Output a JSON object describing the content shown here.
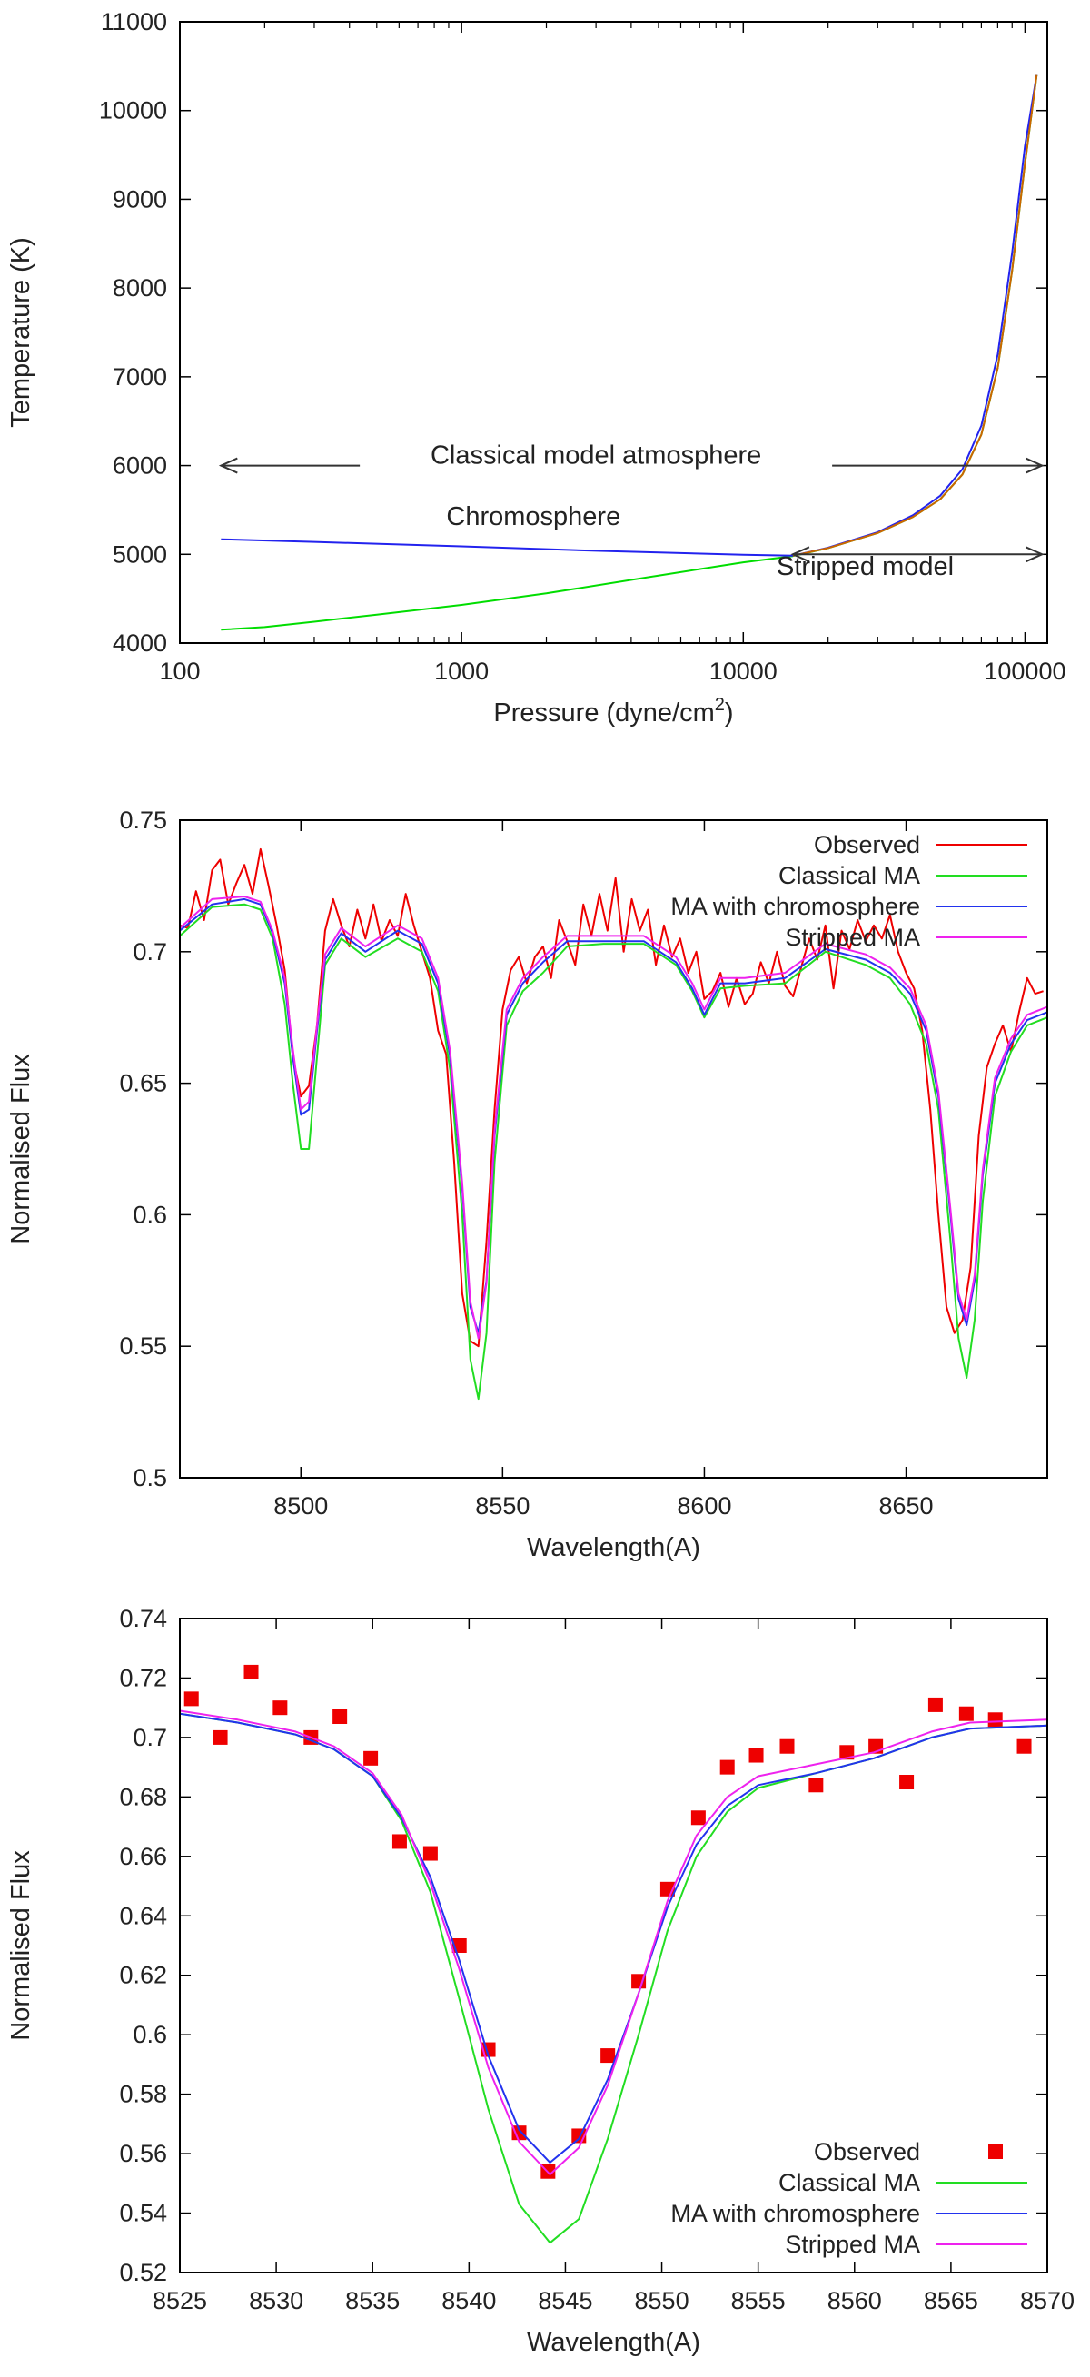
{
  "chart_data": [
    {
      "type": "line",
      "xscale": "log",
      "xlabel": "Pressure (dyne/cm",
      "xlabel_sup": "2",
      "xlabel_tail": ")",
      "ylabel": "Temperature (K)",
      "xlim": [
        100,
        120000
      ],
      "ylim": [
        4000,
        11000
      ],
      "xticks": [
        100,
        1000,
        10000,
        100000
      ],
      "xtick_labels": [
        "100",
        "1000",
        "10000",
        "100000"
      ],
      "yticks": [
        4000,
        5000,
        6000,
        7000,
        8000,
        9000,
        10000,
        11000
      ],
      "ytick_labels": [
        "4000",
        "5000",
        "6000",
        "7000",
        "8000",
        "9000",
        "10000",
        "11000"
      ],
      "series": [
        {
          "name": "Classical model atmosphere",
          "color": "#00dd00",
          "x": [
            140,
            200,
            300,
            500,
            1000,
            2000,
            5000,
            10000,
            15000,
            20000,
            30000,
            40000,
            50000,
            60000,
            70000,
            80000,
            90000,
            100000,
            110000
          ],
          "y": [
            4150,
            4180,
            4240,
            4320,
            4430,
            4560,
            4760,
            4910,
            4980,
            5070,
            5240,
            5420,
            5620,
            5900,
            6350,
            7100,
            8200,
            9400,
            10400
          ]
        },
        {
          "name": "Chromosphere",
          "color": "#2222ee",
          "x": [
            140,
            300,
            1000,
            3000,
            10000,
            15000,
            20000,
            30000,
            40000,
            50000,
            60000,
            70000,
            80000,
            90000,
            100000,
            110000
          ],
          "y": [
            5170,
            5140,
            5090,
            5040,
            4995,
            4985,
            5075,
            5250,
            5440,
            5660,
            5960,
            6450,
            7250,
            8400,
            9600,
            10400
          ]
        },
        {
          "name": "Stripped model",
          "color": "#cc6600",
          "x": [
            15000,
            20000,
            30000,
            40000,
            50000,
            60000,
            70000,
            80000,
            90000,
            100000,
            110000
          ],
          "y": [
            4985,
            5070,
            5240,
            5420,
            5620,
            5900,
            6350,
            7100,
            8200,
            9400,
            10400
          ]
        }
      ],
      "annotations": [
        {
          "text": "Classical model atmosphere",
          "x": 3000,
          "y": 6000
        },
        {
          "text": "Chromosphere",
          "x": 1800,
          "y": 5270
        },
        {
          "text": "Stripped model",
          "x": 40000,
          "y": 4870
        }
      ],
      "arrows": [
        {
          "from": [
            140,
            6000
          ],
          "to": [
            115000,
            6000
          ]
        },
        {
          "from": [
            15000,
            5000
          ],
          "to": [
            115000,
            5000
          ]
        }
      ]
    },
    {
      "type": "line",
      "xlabel": "Wavelength(A)",
      "ylabel": "Normalised Flux",
      "xlim": [
        8470,
        8685
      ],
      "ylim": [
        0.5,
        0.75
      ],
      "xticks": [
        8500,
        8550,
        8600,
        8650
      ],
      "xtick_labels": [
        "8500",
        "8550",
        "8600",
        "8650"
      ],
      "yticks": [
        0.5,
        0.55,
        0.6,
        0.65,
        0.7,
        0.75
      ],
      "ytick_labels": [
        "0.5",
        "0.55",
        "0.6",
        "0.65",
        "0.7",
        "0.75"
      ],
      "legend": "top-right",
      "series": [
        {
          "name": "Observed",
          "color": "#ee0000",
          "x": [
            8470,
            8472,
            8474,
            8476,
            8478,
            8480,
            8482,
            8484,
            8486,
            8488,
            8490,
            8492,
            8494,
            8496,
            8498,
            8500,
            8502,
            8504,
            8506,
            8508,
            8510,
            8512,
            8514,
            8516,
            8518,
            8520,
            8522,
            8524,
            8526,
            8528,
            8530,
            8532,
            8534,
            8536,
            8538,
            8540,
            8542,
            8544,
            8546,
            8548,
            8550,
            8552,
            8554,
            8556,
            8558,
            8560,
            8562,
            8564,
            8566,
            8568,
            8570,
            8572,
            8574,
            8576,
            8578,
            8580,
            8582,
            8584,
            8586,
            8588,
            8590,
            8592,
            8594,
            8596,
            8598,
            8600,
            8602,
            8604,
            8606,
            8608,
            8610,
            8612,
            8614,
            8616,
            8618,
            8620,
            8622,
            8624,
            8626,
            8628,
            8630,
            8632,
            8634,
            8636,
            8638,
            8640,
            8642,
            8644,
            8646,
            8648,
            8650,
            8652,
            8654,
            8656,
            8658,
            8660,
            8662,
            8664,
            8666,
            8668,
            8670,
            8672,
            8674,
            8676,
            8678,
            8680,
            8682,
            8684
          ],
          "y": [
            0.71,
            0.709,
            0.723,
            0.712,
            0.731,
            0.735,
            0.718,
            0.726,
            0.733,
            0.722,
            0.739,
            0.725,
            0.71,
            0.693,
            0.66,
            0.645,
            0.649,
            0.672,
            0.708,
            0.72,
            0.71,
            0.702,
            0.716,
            0.705,
            0.718,
            0.704,
            0.712,
            0.706,
            0.722,
            0.71,
            0.7,
            0.69,
            0.67,
            0.661,
            0.62,
            0.57,
            0.552,
            0.55,
            0.59,
            0.64,
            0.678,
            0.693,
            0.698,
            0.688,
            0.698,
            0.702,
            0.69,
            0.712,
            0.704,
            0.695,
            0.718,
            0.706,
            0.722,
            0.708,
            0.728,
            0.7,
            0.72,
            0.708,
            0.716,
            0.695,
            0.71,
            0.698,
            0.705,
            0.692,
            0.7,
            0.682,
            0.685,
            0.692,
            0.679,
            0.69,
            0.68,
            0.684,
            0.696,
            0.688,
            0.7,
            0.687,
            0.683,
            0.694,
            0.705,
            0.697,
            0.71,
            0.686,
            0.708,
            0.701,
            0.712,
            0.704,
            0.71,
            0.705,
            0.714,
            0.7,
            0.692,
            0.686,
            0.67,
            0.64,
            0.6,
            0.565,
            0.555,
            0.56,
            0.58,
            0.63,
            0.656,
            0.665,
            0.672,
            0.662,
            0.677,
            0.69,
            0.684,
            0.685
          ]
        },
        {
          "name": "Classical MA",
          "color": "#22dd22",
          "x": [
            8470,
            8478,
            8486,
            8490,
            8493,
            8496,
            8498,
            8500,
            8502,
            8504,
            8506,
            8510,
            8516,
            8524,
            8530,
            8534,
            8537,
            8540,
            8542,
            8544,
            8546,
            8548,
            8551,
            8555,
            8560,
            8566,
            8575,
            8585,
            8593,
            8597,
            8600,
            8604,
            8610,
            8620,
            8630,
            8640,
            8646,
            8651,
            8655,
            8658,
            8661,
            8663,
            8665,
            8667,
            8669,
            8672,
            8676,
            8680,
            8685
          ],
          "y": [
            0.706,
            0.717,
            0.718,
            0.716,
            0.705,
            0.68,
            0.65,
            0.625,
            0.625,
            0.66,
            0.695,
            0.705,
            0.698,
            0.705,
            0.7,
            0.685,
            0.655,
            0.6,
            0.545,
            0.53,
            0.555,
            0.62,
            0.672,
            0.685,
            0.692,
            0.702,
            0.703,
            0.703,
            0.695,
            0.685,
            0.675,
            0.686,
            0.687,
            0.688,
            0.7,
            0.695,
            0.69,
            0.68,
            0.665,
            0.64,
            0.59,
            0.553,
            0.538,
            0.56,
            0.605,
            0.645,
            0.662,
            0.672,
            0.675
          ]
        },
        {
          "name": "MA with chromosphere",
          "color": "#2233ee",
          "x": [
            8470,
            8478,
            8486,
            8490,
            8493,
            8496,
            8498,
            8500,
            8502,
            8504,
            8506,
            8510,
            8516,
            8524,
            8530,
            8534,
            8537,
            8540,
            8542,
            8544,
            8546,
            8548,
            8551,
            8555,
            8560,
            8566,
            8575,
            8585,
            8593,
            8597,
            8600,
            8604,
            8610,
            8620,
            8630,
            8640,
            8646,
            8651,
            8655,
            8658,
            8661,
            8663,
            8665,
            8667,
            8669,
            8672,
            8676,
            8680,
            8685
          ],
          "y": [
            0.708,
            0.718,
            0.72,
            0.718,
            0.707,
            0.688,
            0.66,
            0.638,
            0.64,
            0.67,
            0.697,
            0.707,
            0.7,
            0.708,
            0.703,
            0.688,
            0.66,
            0.61,
            0.565,
            0.555,
            0.575,
            0.63,
            0.676,
            0.688,
            0.696,
            0.704,
            0.704,
            0.704,
            0.696,
            0.686,
            0.676,
            0.688,
            0.688,
            0.69,
            0.701,
            0.697,
            0.692,
            0.684,
            0.67,
            0.645,
            0.6,
            0.568,
            0.558,
            0.575,
            0.615,
            0.65,
            0.665,
            0.674,
            0.677
          ]
        },
        {
          "name": "Stripped MA",
          "color": "#ee22ee",
          "x": [
            8470,
            8478,
            8486,
            8490,
            8493,
            8496,
            8498,
            8500,
            8502,
            8504,
            8506,
            8510,
            8516,
            8524,
            8530,
            8534,
            8537,
            8540,
            8542,
            8544,
            8546,
            8548,
            8551,
            8555,
            8560,
            8566,
            8575,
            8585,
            8593,
            8597,
            8600,
            8604,
            8610,
            8620,
            8630,
            8640,
            8646,
            8651,
            8655,
            8658,
            8661,
            8663,
            8665,
            8667,
            8669,
            8672,
            8676,
            8680,
            8685
          ],
          "y": [
            0.709,
            0.72,
            0.721,
            0.719,
            0.708,
            0.69,
            0.663,
            0.64,
            0.643,
            0.672,
            0.699,
            0.709,
            0.702,
            0.71,
            0.705,
            0.69,
            0.662,
            0.612,
            0.567,
            0.553,
            0.574,
            0.632,
            0.678,
            0.69,
            0.698,
            0.706,
            0.706,
            0.706,
            0.698,
            0.688,
            0.678,
            0.69,
            0.69,
            0.692,
            0.703,
            0.699,
            0.694,
            0.686,
            0.672,
            0.647,
            0.602,
            0.57,
            0.56,
            0.577,
            0.617,
            0.652,
            0.667,
            0.676,
            0.679
          ]
        }
      ]
    },
    {
      "type": "line",
      "xlabel": "Wavelength(A)",
      "ylabel": "Normalised Flux",
      "xlim": [
        8525,
        8570
      ],
      "ylim": [
        0.52,
        0.74
      ],
      "xticks": [
        8525,
        8530,
        8535,
        8540,
        8545,
        8550,
        8555,
        8560,
        8565,
        8570
      ],
      "xtick_labels": [
        "8525",
        "8530",
        "8535",
        "8540",
        "8545",
        "8550",
        "8555",
        "8560",
        "8565",
        "8570"
      ],
      "yticks": [
        0.52,
        0.54,
        0.56,
        0.58,
        0.6,
        0.62,
        0.64,
        0.66,
        0.68,
        0.7,
        0.72,
        0.74
      ],
      "ytick_labels": [
        "0.52",
        "0.54",
        "0.56",
        "0.58",
        "0.6",
        "0.62",
        "0.64",
        "0.66",
        "0.68",
        "0.7",
        "0.72",
        "0.74"
      ],
      "legend": "bottom-right",
      "series": [
        {
          "name": "Observed",
          "color": "#ee0000",
          "marker": "square",
          "x": [
            8525.6,
            8527.1,
            8528.7,
            8530.2,
            8531.8,
            8533.3,
            8534.9,
            8536.4,
            8538.0,
            8539.5,
            8541.0,
            8542.6,
            8544.1,
            8545.7,
            8547.2,
            8548.8,
            8550.3,
            8551.9,
            8553.4,
            8554.9,
            8556.5,
            8558.0,
            8559.6,
            8561.1,
            8562.7,
            8564.2,
            8565.8,
            8567.3,
            8568.8
          ],
          "y": [
            0.713,
            0.7,
            0.722,
            0.71,
            0.7,
            0.707,
            0.693,
            0.665,
            0.661,
            0.63,
            0.595,
            0.567,
            0.554,
            0.566,
            0.593,
            0.618,
            0.649,
            0.673,
            0.69,
            0.694,
            0.697,
            0.684,
            0.695,
            0.697,
            0.685,
            0.711,
            0.708,
            0.706,
            0.697
          ]
        },
        {
          "name": "Classical MA",
          "color": "#22dd22",
          "x": [
            8525,
            8528,
            8531,
            8533,
            8535,
            8536.5,
            8538,
            8539.5,
            8541,
            8542.6,
            8544.2,
            8545.7,
            8547.2,
            8548.8,
            8550.3,
            8551.8,
            8553.4,
            8555,
            8558,
            8561,
            8564,
            8566,
            8570
          ],
          "y": [
            0.708,
            0.705,
            0.701,
            0.696,
            0.687,
            0.672,
            0.648,
            0.612,
            0.575,
            0.543,
            0.53,
            0.538,
            0.565,
            0.6,
            0.635,
            0.66,
            0.675,
            0.683,
            0.688,
            0.693,
            0.7,
            0.703,
            0.704
          ]
        },
        {
          "name": "MA with chromosphere",
          "color": "#2233ee",
          "x": [
            8525,
            8528,
            8531,
            8533,
            8535,
            8536.5,
            8538,
            8539.5,
            8541,
            8542.6,
            8544.2,
            8545.7,
            8547.2,
            8548.8,
            8550.3,
            8551.8,
            8553.4,
            8555,
            8558,
            8561,
            8564,
            8566,
            8570
          ],
          "y": [
            0.708,
            0.705,
            0.701,
            0.696,
            0.687,
            0.673,
            0.653,
            0.625,
            0.593,
            0.568,
            0.557,
            0.565,
            0.585,
            0.614,
            0.643,
            0.664,
            0.677,
            0.684,
            0.688,
            0.693,
            0.7,
            0.703,
            0.704
          ]
        },
        {
          "name": "Stripped MA",
          "color": "#ee22ee",
          "x": [
            8525,
            8528,
            8531,
            8533,
            8535,
            8536.5,
            8538,
            8539.5,
            8541,
            8542.6,
            8544.2,
            8545.7,
            8547.2,
            8548.8,
            8550.3,
            8551.8,
            8553.4,
            8555,
            8558,
            8561,
            8564,
            8566,
            8570
          ],
          "y": [
            0.709,
            0.706,
            0.702,
            0.697,
            0.688,
            0.674,
            0.651,
            0.622,
            0.589,
            0.564,
            0.553,
            0.562,
            0.583,
            0.614,
            0.645,
            0.667,
            0.68,
            0.687,
            0.691,
            0.695,
            0.702,
            0.705,
            0.706
          ]
        }
      ]
    }
  ]
}
